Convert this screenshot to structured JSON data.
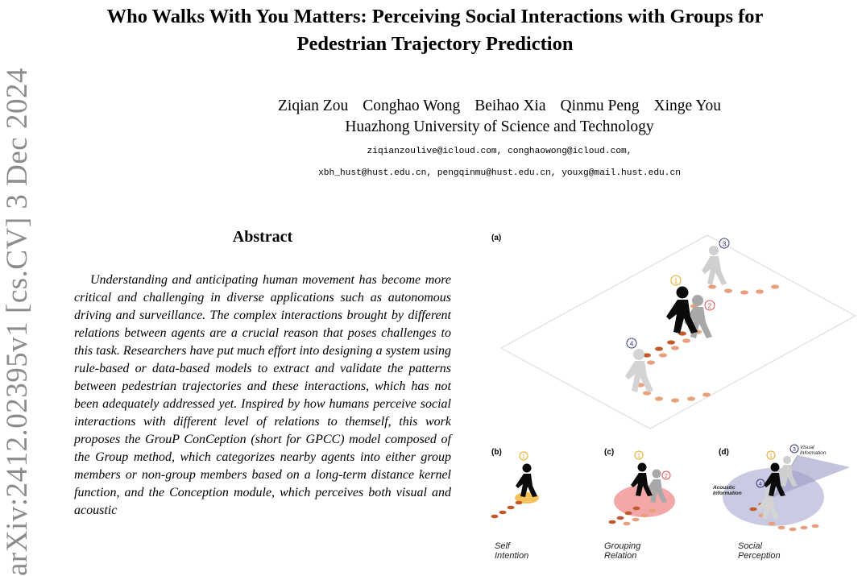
{
  "title": {
    "line1": "Who Walks With You Matters: Perceiving Social Interactions with Groups for",
    "line2": "Pedestrian Trajectory Prediction"
  },
  "authors": [
    "Ziqian Zou",
    "Conghao Wong",
    "Beihao Xia",
    "Qinmu Peng",
    "Xinge You"
  ],
  "affiliation": "Huazhong University of Science and Technology",
  "emails": {
    "line1": "ziqianzoulive@icloud.com, conghaowong@icloud.com,",
    "line2": "xbh_hust@hust.edu.cn, pengqinmu@hust.edu.cn, youxg@mail.hust.edu.cn"
  },
  "arxiv_stamp": "arXiv:2412.02395v1  [cs.CV]  3 Dec 2024",
  "abstract": {
    "heading": "Abstract",
    "text": "Understanding and anticipating human movement has become more critical and challenging in diverse applications such as autonomous driving and surveillance. The complex interactions brought by different relations between agents are a crucial reason that poses challenges to this task. Researchers have put much effort into designing a system using rule-based or data-based models to extract and validate the patterns between pedestrian trajectories and these interactions, which has not been adequately addressed yet. Inspired by how humans perceive social interactions with different level of relations to themself, this work proposes the GrouP ConCeption (short for GPCC) model composed of the Group method, which categorizes nearby agents into either group members or non-group members based on a long-term distance kernel function, and the Conception module, which perceives both visual and acoustic"
  },
  "figure": {
    "panel_labels": [
      "(a)",
      "(b)",
      "(c)",
      "(d)"
    ],
    "markers": [
      "①",
      "②",
      "③",
      "④"
    ],
    "captions": [
      "Self Intention",
      "Grouping Relation",
      "Social Perception"
    ],
    "annotations": {
      "visual": "Visual Information",
      "acoustic": "Acoustic Information"
    },
    "colors": {
      "trajectory": "#e8a07a",
      "trajectory_dark": "#c05a2a",
      "marker_1": "#e8a81c",
      "marker_2": "#e05050",
      "marker_3": "#3a3a7a",
      "marker_4": "#3a3a7a",
      "group_fill": "#f08a8a",
      "perception_fill": "#b8b8d8"
    }
  }
}
